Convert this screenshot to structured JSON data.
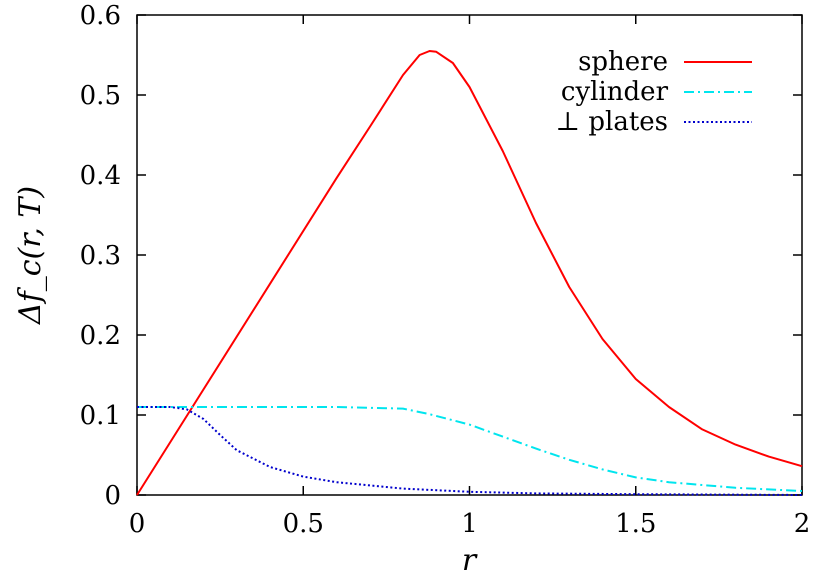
{
  "chart_data": {
    "type": "line",
    "xlabel": "r",
    "ylabel": "Δf_c(r, T)",
    "xlim": [
      0,
      2
    ],
    "ylim": [
      0,
      0.6
    ],
    "grid": false,
    "legend_position": "top-right",
    "x_ticks": [
      0,
      0.5,
      1,
      1.5,
      2
    ],
    "x_tick_labels": [
      "0",
      "0.5",
      "1",
      "1.5",
      "2"
    ],
    "y_ticks": [
      0,
      0.1,
      0.2,
      0.3,
      0.4,
      0.5,
      0.6
    ],
    "y_tick_labels": [
      "0",
      "0.1",
      "0.2",
      "0.3",
      "0.4",
      "0.5",
      "0.6"
    ],
    "series": [
      {
        "name": "sphere",
        "color": "#ff0000",
        "style": "solid",
        "x": [
          0,
          0.2,
          0.4,
          0.6,
          0.7,
          0.8,
          0.85,
          0.88,
          0.9,
          0.95,
          1.0,
          1.1,
          1.2,
          1.3,
          1.4,
          1.5,
          1.6,
          1.7,
          1.8,
          1.9,
          2.0
        ],
        "y": [
          0,
          0.132,
          0.264,
          0.396,
          0.46,
          0.525,
          0.55,
          0.555,
          0.554,
          0.54,
          0.51,
          0.43,
          0.34,
          0.26,
          0.195,
          0.145,
          0.11,
          0.082,
          0.063,
          0.048,
          0.036
        ]
      },
      {
        "name": "cylinder",
        "color": "#00e5ee",
        "style": "dash-dot",
        "x": [
          0,
          0.2,
          0.4,
          0.6,
          0.8,
          0.88,
          1.0,
          1.1,
          1.2,
          1.3,
          1.4,
          1.5,
          1.6,
          1.8,
          2.0
        ],
        "y": [
          0.11,
          0.11,
          0.11,
          0.11,
          0.108,
          0.101,
          0.088,
          0.073,
          0.058,
          0.044,
          0.032,
          0.022,
          0.016,
          0.009,
          0.005
        ]
      },
      {
        "name": "⊥ plates",
        "color": "#0000cc",
        "style": "dotted",
        "x": [
          0,
          0.1,
          0.15,
          0.2,
          0.25,
          0.3,
          0.4,
          0.5,
          0.6,
          0.8,
          1.0,
          1.2,
          1.5,
          2.0
        ],
        "y": [
          0.11,
          0.11,
          0.107,
          0.095,
          0.075,
          0.056,
          0.035,
          0.023,
          0.016,
          0.008,
          0.004,
          0.002,
          0.001,
          0.0
        ]
      }
    ]
  }
}
